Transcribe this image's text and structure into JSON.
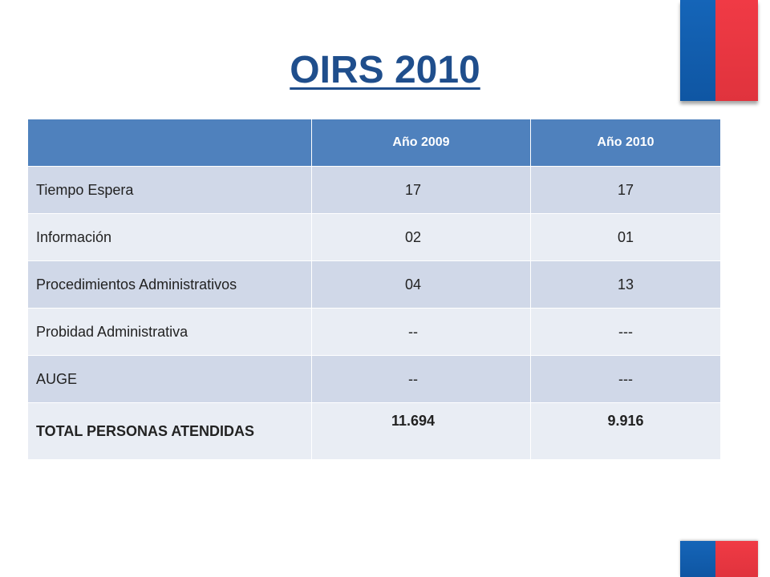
{
  "title": "OIRS 2010",
  "table": {
    "headers": [
      "",
      "Año 2009",
      "Año 2010"
    ],
    "rows": [
      {
        "label": "Tiempo Espera",
        "y2009": "17",
        "y2010": "17"
      },
      {
        "label": "Información",
        "y2009": "02",
        "y2010": "01"
      },
      {
        "label": "Procedimientos Administrativos",
        "y2009": "04",
        "y2010": "13"
      },
      {
        "label": "Probidad Administrativa",
        "y2009": "--",
        "y2010": "---"
      },
      {
        "label": "AUGE",
        "y2009": "--",
        "y2010": "---"
      },
      {
        "label": "TOTAL PERSONAS ATENDIDAS",
        "y2009": "11.694",
        "y2010": "9.916"
      }
    ]
  },
  "colors": {
    "header_blue": "#4f81bd",
    "title_blue": "#1f4e8c",
    "flag_blue": "#1565b8",
    "flag_red": "#f03a45",
    "row_dark": "#d0d8e8",
    "row_light": "#e9edf4"
  }
}
